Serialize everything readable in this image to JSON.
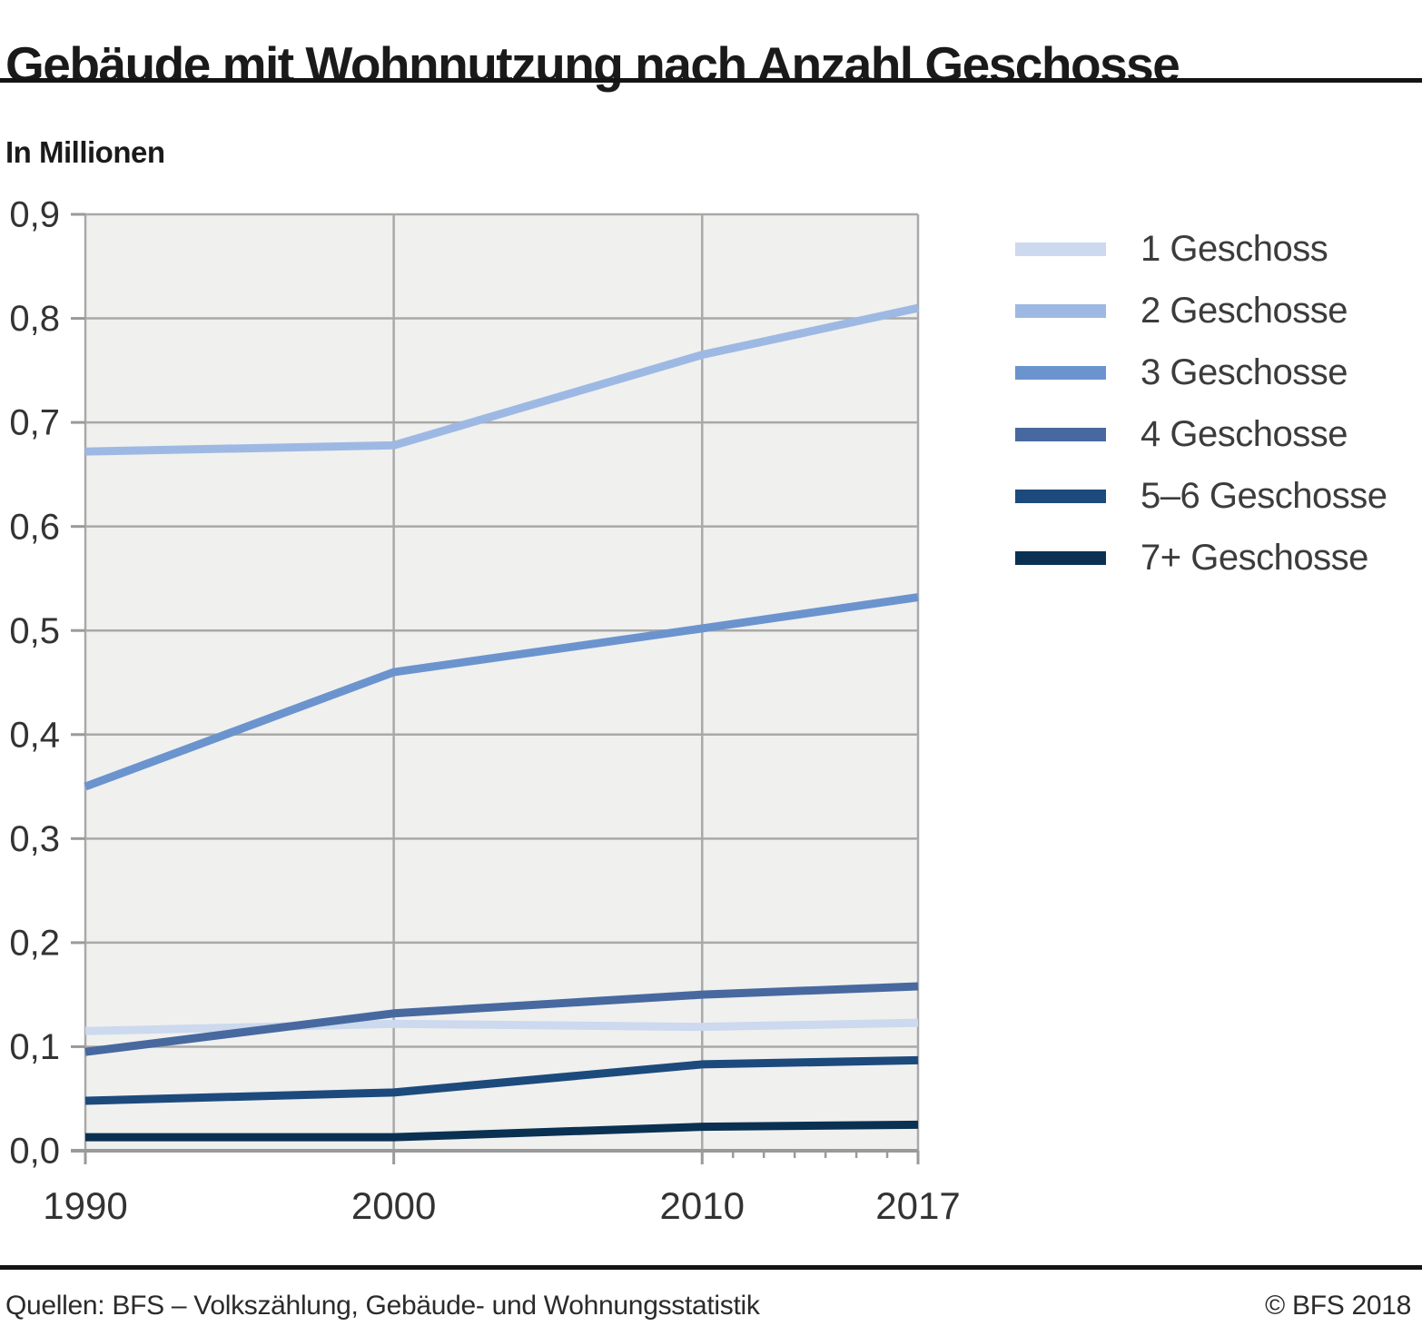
{
  "title": "Gebäude mit Wohnnutzung nach Anzahl Geschosse",
  "subtitle": "In Millionen",
  "footer": {
    "source": "Quellen: BFS – Volkszählung, Gebäude- und Wohnungsstatistik",
    "copyright": "© BFS 2018"
  },
  "colors": {
    "plot_background": "#f0f0ef",
    "gridline": "#a9a9a9",
    "axis": "#9a9a9a",
    "tick_label": "#333333",
    "rule": "#141414"
  },
  "chart_data": {
    "type": "line",
    "x": [
      1990,
      2000,
      2010,
      2017
    ],
    "xlim": [
      1990,
      2017
    ],
    "ylim": [
      0,
      0.9
    ],
    "x_tick_labels": [
      "1990",
      "2000",
      "2010",
      "2017"
    ],
    "x_minor_ticks": [
      2011,
      2012,
      2013,
      2014,
      2015,
      2016
    ],
    "y_ticks": [
      0.0,
      0.1,
      0.2,
      0.3,
      0.4,
      0.5,
      0.6,
      0.7,
      0.8,
      0.9
    ],
    "y_tick_labels": [
      "0,0",
      "0,1",
      "0,2",
      "0,3",
      "0,4",
      "0,5",
      "0,6",
      "0,7",
      "0,8",
      "0,9"
    ],
    "title": "Gebäude mit Wohnnutzung nach Anzahl Geschosse",
    "ylabel": "In Millionen",
    "xlabel": "",
    "grid": true,
    "legend_position": "right",
    "series": [
      {
        "name": "1 Geschoss",
        "color": "#ccd9ee",
        "values": [
          0.115,
          0.122,
          0.119,
          0.123
        ]
      },
      {
        "name": "2 Geschosse",
        "color": "#9db9e3",
        "values": [
          0.672,
          0.678,
          0.765,
          0.81
        ]
      },
      {
        "name": "3 Geschosse",
        "color": "#6b94ce",
        "values": [
          0.35,
          0.46,
          0.502,
          0.532
        ]
      },
      {
        "name": "4 Geschosse",
        "color": "#47699f",
        "values": [
          0.095,
          0.132,
          0.15,
          0.158
        ]
      },
      {
        "name": "5–6 Geschosse",
        "color": "#1d4a7c",
        "values": [
          0.048,
          0.056,
          0.083,
          0.087
        ]
      },
      {
        "name": "7+ Geschosse",
        "color": "#0a3152",
        "values": [
          0.013,
          0.013,
          0.023,
          0.025
        ]
      }
    ]
  }
}
